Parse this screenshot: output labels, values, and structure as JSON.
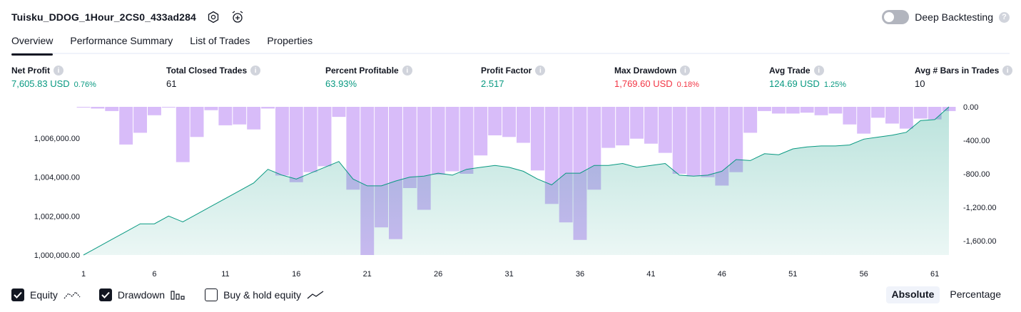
{
  "header": {
    "title": "Tuisku_DDOG_1Hour_2CS0_433ad284",
    "settings_icon": "gear-icon",
    "alert_icon": "alarm-clock-plus-icon"
  },
  "deep_backtesting": {
    "label": "Deep Backtesting",
    "enabled": false,
    "help": "?"
  },
  "tabs": [
    {
      "label": "Overview",
      "active": true
    },
    {
      "label": "Performance Summary",
      "active": false
    },
    {
      "label": "List of Trades",
      "active": false
    },
    {
      "label": "Properties",
      "active": false
    }
  ],
  "metrics": {
    "net_profit": {
      "label": "Net Profit",
      "value": "7,605.83 USD",
      "pct": "0.76%"
    },
    "total_closed_trades": {
      "label": "Total Closed Trades",
      "value": "61"
    },
    "percent_profitable": {
      "label": "Percent Profitable",
      "value": "63.93%"
    },
    "profit_factor": {
      "label": "Profit Factor",
      "value": "2.517"
    },
    "max_drawdown": {
      "label": "Max Drawdown",
      "value": "1,769.60 USD",
      "pct": "0.18%"
    },
    "avg_trade": {
      "label": "Avg Trade",
      "value": "124.69 USD",
      "pct": "1.25%"
    },
    "avg_bars": {
      "label": "Avg # Bars in Trades",
      "value": "10"
    },
    "info_glyph": "i"
  },
  "chart_data": {
    "type": "line+bar",
    "x": [
      1,
      2,
      3,
      4,
      5,
      6,
      7,
      8,
      9,
      10,
      11,
      12,
      13,
      14,
      15,
      16,
      17,
      18,
      19,
      20,
      21,
      22,
      23,
      24,
      25,
      26,
      27,
      28,
      29,
      30,
      31,
      32,
      33,
      34,
      35,
      36,
      37,
      38,
      39,
      40,
      41,
      42,
      43,
      44,
      45,
      46,
      47,
      48,
      49,
      50,
      51,
      52,
      53,
      54,
      55,
      56,
      57,
      58,
      59,
      60,
      61,
      62
    ],
    "x_ticks": [
      "1",
      "6",
      "11",
      "16",
      "21",
      "26",
      "31",
      "36",
      "41",
      "46",
      "51",
      "56",
      "61"
    ],
    "equity": {
      "name": "Equity",
      "axis": "left",
      "values": [
        1000000,
        1000400,
        1000800,
        1001200,
        1001600,
        1001600,
        1002000,
        1001700,
        1002100,
        1002500,
        1002900,
        1003300,
        1003700,
        1004400,
        1004100,
        1003900,
        1004200,
        1004500,
        1004800,
        1003900,
        1003550,
        1003550,
        1003800,
        1004000,
        1004050,
        1004200,
        1004100,
        1004400,
        1004500,
        1004600,
        1004500,
        1004300,
        1003900,
        1003600,
        1004200,
        1004200,
        1004600,
        1004600,
        1004700,
        1004500,
        1004600,
        1004700,
        1004100,
        1004050,
        1004100,
        1004300,
        1004900,
        1004850,
        1005200,
        1005150,
        1005450,
        1005550,
        1005600,
        1005600,
        1005650,
        1005950,
        1006050,
        1006150,
        1006300,
        1006900,
        1006950,
        1007605.83
      ],
      "color": "#089981"
    },
    "drawdown": {
      "name": "Drawdown",
      "axis": "right",
      "values": [
        0,
        -20,
        -50,
        -450,
        -310,
        -100,
        0,
        -660,
        -360,
        -40,
        -220,
        -210,
        -270,
        -20,
        -820,
        -900,
        -780,
        -710,
        -120,
        -990,
        -1770,
        -1440,
        -1580,
        -970,
        -1230,
        -810,
        -770,
        -800,
        -580,
        -340,
        -360,
        -430,
        -760,
        -1160,
        -1380,
        -1590,
        -990,
        -490,
        -460,
        -380,
        -440,
        -550,
        -800,
        -830,
        -840,
        -940,
        -780,
        -310,
        -50,
        -80,
        -80,
        -70,
        -100,
        -80,
        -210,
        -320,
        -130,
        -200,
        -260,
        -140,
        -150,
        -50
      ],
      "color": "#cba6f7"
    },
    "left_axis": {
      "ticks": [
        "1,000,000.00",
        "1,002,000.00",
        "1,004,000.00",
        "1,006,000.00"
      ],
      "range": [
        1000000,
        1007605.83
      ]
    },
    "right_axis": {
      "ticks": [
        "0.00",
        "-400.00",
        "-800.00",
        "-1,200.00",
        "-1,600.00"
      ],
      "range": [
        -1770,
        0
      ]
    },
    "buy_hold": {
      "name": "Buy & hold equity",
      "visible": false
    }
  },
  "legend": {
    "equity": {
      "label": "Equity",
      "checked": true,
      "icon": "equity-line-icon"
    },
    "drawdown": {
      "label": "Drawdown",
      "checked": true,
      "icon": "drawdown-bars-icon"
    },
    "buy_hold": {
      "label": "Buy & hold equity",
      "checked": false,
      "icon": "buy-hold-line-icon"
    }
  },
  "mode": {
    "absolute": "Absolute",
    "percentage": "Percentage",
    "selected": "absolute"
  }
}
